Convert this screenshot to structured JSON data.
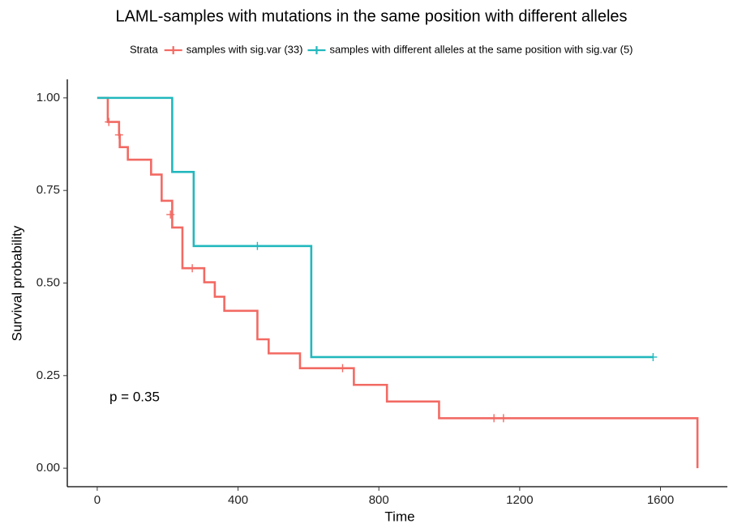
{
  "chart_data": {
    "type": "step",
    "title": "LAML-samples with mutations in the same position with different alleles",
    "legend_title": "Strata",
    "x_label": "Time",
    "y_label": "Survival probability",
    "annotation": "p = 0.35",
    "xlim": [
      -85,
      1790
    ],
    "ylim": [
      -0.05,
      1.05
    ],
    "xticks": [
      0,
      400,
      800,
      1200,
      1600
    ],
    "yticks": [
      {
        "value": 0,
        "label": "0.00"
      },
      {
        "value": 0.25,
        "label": "0.25"
      },
      {
        "value": 0.5,
        "label": "0.50"
      },
      {
        "value": 0.75,
        "label": "0.75"
      },
      {
        "value": 1,
        "label": "1.00"
      }
    ],
    "grid": false,
    "series": [
      {
        "name": "samples with sig.var (33)",
        "color": "#F26A63",
        "x": [
          0,
          30,
          62,
          64,
          87,
          153,
          183,
          213,
          242,
          304,
          334,
          361,
          455,
          487,
          576,
          729,
          823,
          971,
          1705
        ],
        "values": [
          1,
          0.935,
          0.9,
          0.867,
          0.833,
          0.793,
          0.722,
          0.65,
          0.54,
          0.502,
          0.463,
          0.425,
          0.348,
          0.31,
          0.27,
          0.225,
          0.18,
          0.135,
          0
        ],
        "censor_x": [
          33,
          62,
          208,
          270,
          697,
          1127,
          1154
        ],
        "censor_values": [
          0.935,
          0.9,
          0.685,
          0.54,
          0.27,
          0.135,
          0.135
        ]
      },
      {
        "name": "samples with different alleles at the same position with sig.var (5)",
        "color": "#22B8BD",
        "x": [
          0,
          213,
          274,
          608,
          1579
        ],
        "values": [
          1,
          0.8,
          0.6,
          0.3,
          0.3
        ],
        "censor_x": [
          455,
          1579
        ],
        "censor_values": [
          0.6,
          0.3
        ]
      }
    ]
  }
}
